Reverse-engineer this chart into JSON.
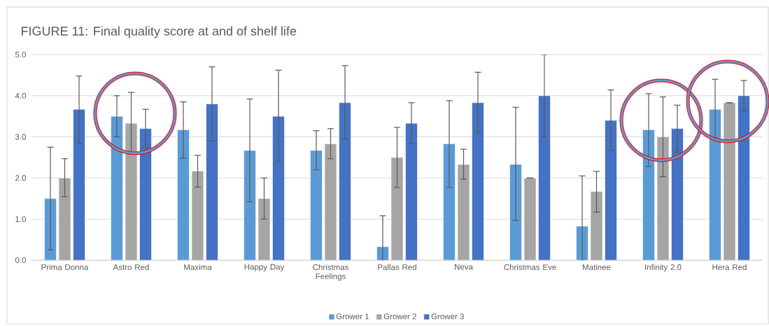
{
  "chart_data": {
    "type": "bar",
    "title": "FIGURE 11: Final quality score at and of shelf life",
    "categories": [
      "Prima Donna",
      "Astro Red",
      "Maxima",
      "Happy Day",
      "Christmas Feelings",
      "Pallas Red",
      "Neva",
      "Christmas Eve",
      "Matinee",
      "Infinity 2.0",
      "Hera Red"
    ],
    "series": [
      {
        "name": "Grower 1",
        "color": "#5b9bd5",
        "values": [
          1.5,
          3.5,
          3.17,
          2.67,
          2.67,
          0.33,
          2.83,
          2.33,
          0.83,
          3.17,
          3.67
        ],
        "errors": [
          [
            0.25,
            2.75
          ],
          [
            3.0,
            4.0
          ],
          [
            2.48,
            3.85
          ],
          [
            1.42,
            3.92
          ],
          [
            2.2,
            3.15
          ],
          [
            0.0,
            1.08
          ],
          [
            1.77,
            3.88
          ],
          [
            0.97,
            3.72
          ],
          [
            0.0,
            2.05
          ],
          [
            2.28,
            4.05
          ],
          [
            2.94,
            4.4
          ]
        ]
      },
      {
        "name": "Grower 2",
        "color": "#a5a5a5",
        "values": [
          2.0,
          3.33,
          2.17,
          1.5,
          2.83,
          2.5,
          2.33,
          2.0,
          1.67,
          3.0,
          3.83
        ],
        "errors": [
          [
            1.55,
            2.47
          ],
          [
            2.58,
            4.08
          ],
          [
            1.78,
            2.55
          ],
          [
            1.0,
            2.0
          ],
          [
            2.47,
            3.2
          ],
          [
            1.77,
            3.23
          ],
          [
            1.97,
            2.7
          ],
          [
            2.0,
            2.0
          ],
          [
            1.17,
            2.16
          ],
          [
            2.03,
            3.97
          ],
          [
            3.83,
            3.83
          ]
        ]
      },
      {
        "name": "Grower 3",
        "color": "#4472c4",
        "values": [
          3.67,
          3.2,
          3.8,
          3.5,
          3.83,
          3.33,
          3.83,
          4.0,
          3.4,
          3.2,
          4.0
        ],
        "errors": [
          [
            2.85,
            4.48
          ],
          [
            2.73,
            3.67
          ],
          [
            2.9,
            4.7
          ],
          [
            2.4,
            4.62
          ],
          [
            2.95,
            4.73
          ],
          [
            2.84,
            3.83
          ],
          [
            3.1,
            4.57
          ],
          [
            3.0,
            5.0
          ],
          [
            2.67,
            4.14
          ],
          [
            2.63,
            3.77
          ],
          [
            3.63,
            4.37
          ]
        ]
      }
    ],
    "ylim": [
      0,
      5
    ],
    "yticks": [
      {
        "value": 0,
        "label": "0.0"
      },
      {
        "value": 1,
        "label": "1.0"
      },
      {
        "value": 2,
        "label": "2.0"
      },
      {
        "value": 3,
        "label": "3.0"
      },
      {
        "value": 4,
        "label": "4.0"
      },
      {
        "value": 5,
        "label": "5.0"
      }
    ],
    "grid": "y",
    "legend": "bottom"
  }
}
